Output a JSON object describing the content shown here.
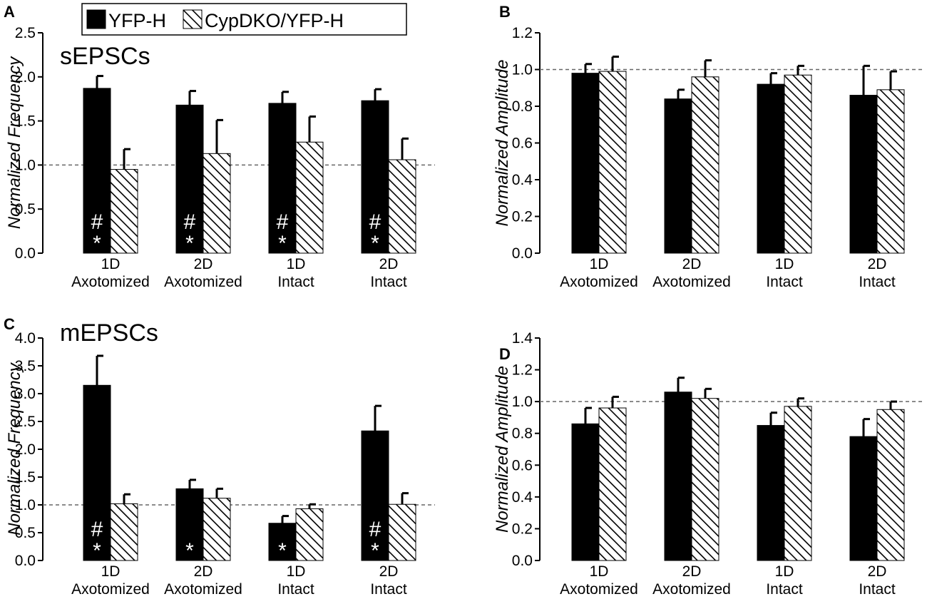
{
  "chart_data": [
    {
      "type": "bar",
      "panel": "A",
      "title": "sEPSCs",
      "ylabel": "Normalized Frequency",
      "legend": "top",
      "categories": [
        "1D\nAxotomized",
        "2D\nAxotomized",
        "1D\nIntact",
        "2D\nIntact"
      ],
      "ylim": [
        0,
        2.5
      ],
      "yticks": [
        {
          "value": 0,
          "label": "0.0"
        },
        {
          "value": 0.5,
          "label": "0.5"
        },
        {
          "value": 1,
          "label": "1.0"
        },
        {
          "value": 1.5,
          "label": "1.5"
        },
        {
          "value": 2,
          "label": "2.0"
        },
        {
          "value": 2.5,
          "label": "2.5"
        }
      ],
      "reference_line": 1,
      "series": [
        {
          "name": "YFP-H",
          "color": "#000000",
          "fill": "solid",
          "values": [
            1.87,
            1.68,
            1.7,
            1.73
          ],
          "errors": [
            0.14,
            0.16,
            0.13,
            0.13
          ],
          "annotations": [
            [
              "#",
              "*"
            ],
            [
              "#",
              "*"
            ],
            [
              "#",
              "*"
            ],
            [
              "#",
              "*"
            ]
          ]
        },
        {
          "name": "CypDKO/YFP-H",
          "color": "#000000",
          "fill": "hatch",
          "values": [
            0.95,
            1.13,
            1.26,
            1.06
          ],
          "errors": [
            0.23,
            0.38,
            0.29,
            0.24
          ]
        }
      ]
    },
    {
      "type": "bar",
      "panel": "B",
      "ylabel": "Normalized Amplitude",
      "categories": [
        "1D\nAxotomized",
        "2D\nAxotomized",
        "1D\nIntact",
        "2D\nIntact"
      ],
      "ylim": [
        0,
        1.2
      ],
      "yticks": [
        {
          "value": 0,
          "label": "0.0"
        },
        {
          "value": 0.2,
          "label": "0.2"
        },
        {
          "value": 0.4,
          "label": "0.4"
        },
        {
          "value": 0.6,
          "label": "0.6"
        },
        {
          "value": 0.8,
          "label": "0.8"
        },
        {
          "value": 1,
          "label": "1.0"
        },
        {
          "value": 1.2,
          "label": "1.2"
        }
      ],
      "reference_line": 1,
      "series": [
        {
          "name": "YFP-H",
          "color": "#000000",
          "fill": "solid",
          "values": [
            0.98,
            0.84,
            0.92,
            0.86
          ],
          "errors": [
            0.05,
            0.05,
            0.06,
            0.16
          ]
        },
        {
          "name": "CypDKO/YFP-H",
          "color": "#000000",
          "fill": "hatch",
          "values": [
            0.99,
            0.96,
            0.97,
            0.89
          ],
          "errors": [
            0.08,
            0.09,
            0.05,
            0.1
          ]
        }
      ]
    },
    {
      "type": "bar",
      "panel": "C",
      "title": "mEPSCs",
      "ylabel": "Normalized Frequency",
      "categories": [
        "1D\nAxotomized",
        "2D\nAxotomized",
        "1D\nIntact",
        "2D\nIntact"
      ],
      "ylim": [
        0,
        4
      ],
      "yticks": [
        {
          "value": 0,
          "label": "0.0"
        },
        {
          "value": 0.5,
          "label": "0.5"
        },
        {
          "value": 1,
          "label": "1.0"
        },
        {
          "value": 1.5,
          "label": "1.5"
        },
        {
          "value": 2,
          "label": "2.0"
        },
        {
          "value": 2.5,
          "label": "2.5"
        },
        {
          "value": 3,
          "label": "3.0"
        },
        {
          "value": 3.5,
          "label": "3.5"
        },
        {
          "value": 4,
          "label": "4.0"
        }
      ],
      "reference_line": 1,
      "series": [
        {
          "name": "YFP-H",
          "color": "#000000",
          "fill": "solid",
          "values": [
            3.15,
            1.29,
            0.67,
            2.33
          ],
          "errors": [
            0.53,
            0.16,
            0.13,
            0.45
          ],
          "annotations": [
            [
              "#",
              "*"
            ],
            [
              "*"
            ],
            [
              "*"
            ],
            [
              "#",
              "*"
            ]
          ]
        },
        {
          "name": "CypDKO/YFP-H",
          "color": "#000000",
          "fill": "hatch",
          "values": [
            1.02,
            1.12,
            0.93,
            1.01
          ],
          "errors": [
            0.17,
            0.17,
            0.08,
            0.2
          ]
        }
      ]
    },
    {
      "type": "bar",
      "panel": "D",
      "ylabel": "Normalized Amplitude",
      "categories": [
        "1D\nAxotomized",
        "2D\nAxotomized",
        "1D\nIntact",
        "2D\nIntact"
      ],
      "ylim": [
        0,
        1.4
      ],
      "yticks": [
        {
          "value": 0,
          "label": "0.0"
        },
        {
          "value": 0.2,
          "label": "0.2"
        },
        {
          "value": 0.4,
          "label": "0.4"
        },
        {
          "value": 0.6,
          "label": "0.6"
        },
        {
          "value": 0.8,
          "label": "0.8"
        },
        {
          "value": 1,
          "label": "1.0"
        },
        {
          "value": 1.2,
          "label": "1.2"
        },
        {
          "value": 1.4,
          "label": "1.4"
        }
      ],
      "reference_line": 1,
      "series": [
        {
          "name": "YFP-H",
          "color": "#000000",
          "fill": "solid",
          "values": [
            0.86,
            1.06,
            0.85,
            0.78
          ],
          "errors": [
            0.1,
            0.09,
            0.08,
            0.11
          ]
        },
        {
          "name": "CypDKO/YFP-H",
          "color": "#000000",
          "fill": "hatch",
          "values": [
            0.96,
            1.02,
            0.97,
            0.95
          ],
          "errors": [
            0.07,
            0.06,
            0.05,
            0.05
          ]
        }
      ]
    }
  ]
}
